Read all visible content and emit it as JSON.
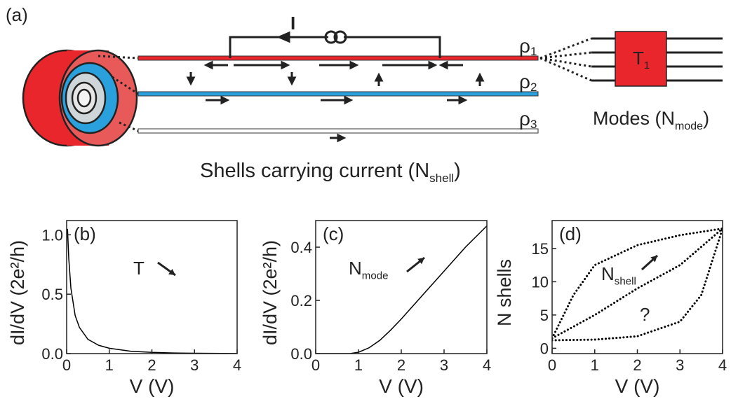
{
  "diagram": {
    "panel_label": "(a)",
    "current_label": "I",
    "shells": [
      {
        "symbol": "ρ",
        "sub": "1",
        "color": "#e8262b"
      },
      {
        "symbol": "ρ",
        "sub": "2",
        "color": "#2aa1dd"
      },
      {
        "symbol": "ρ",
        "sub": "3",
        "color": "#ffffff"
      }
    ],
    "box": {
      "symbol": "T",
      "sub": "1"
    },
    "modes": {
      "text": "Modes (N",
      "sub": "mode",
      "end": ")"
    },
    "caption": {
      "text": "Shells carrying current (N",
      "sub": "shell",
      "end": ")"
    }
  },
  "chart_data": [
    {
      "type": "line",
      "panel_label": "(b)",
      "xlabel": "V (V)",
      "ylabel": "dI/dV (2e²/h)",
      "xlim": [
        0,
        4
      ],
      "ylim": [
        0,
        1.12
      ],
      "xticks": [
        0,
        1,
        2,
        3,
        4
      ],
      "yticks": [
        {
          "value": 0,
          "label": "0.0"
        },
        {
          "value": 0.5,
          "label": "0.5"
        },
        {
          "value": 1,
          "label": "1.0"
        }
      ],
      "annotation": {
        "text": "T",
        "sub": ""
      },
      "series": [
        {
          "color": "#000000",
          "linestyle": "solid",
          "x": [
            0.02,
            0.05,
            0.1,
            0.2,
            0.3,
            0.5,
            0.75,
            1,
            1.5,
            2,
            2.5,
            3,
            4
          ],
          "values": [
            1.05,
            0.8,
            0.55,
            0.32,
            0.22,
            0.12,
            0.07,
            0.045,
            0.02,
            0.01,
            0.005,
            0.003,
            0.001
          ]
        }
      ]
    },
    {
      "type": "line",
      "panel_label": "(c)",
      "xlabel": "V (V)",
      "ylabel": "dI/dV (2e²/h)",
      "xlim": [
        0,
        4
      ],
      "ylim": [
        0,
        0.5
      ],
      "xticks": [
        0,
        1,
        2,
        3,
        4
      ],
      "yticks": [
        {
          "value": 0,
          "label": "0.0"
        },
        {
          "value": 0.2,
          "label": "0.2"
        },
        {
          "value": 0.4,
          "label": "0.4"
        }
      ],
      "annotation": {
        "text": "N",
        "sub": "mode"
      },
      "series": [
        {
          "color": "#000000",
          "linestyle": "solid",
          "x": [
            0,
            0.8,
            1,
            1.25,
            1.5,
            1.75,
            2,
            2.5,
            3,
            3.5,
            4
          ],
          "values": [
            0,
            0,
            0.005,
            0.022,
            0.05,
            0.088,
            0.13,
            0.22,
            0.31,
            0.4,
            0.48
          ]
        }
      ]
    },
    {
      "type": "line",
      "panel_label": "(d)",
      "xlabel": "V (V)",
      "ylabel": "N shells",
      "xlim": [
        0,
        4
      ],
      "ylim": [
        -0.8,
        19.2
      ],
      "xticks": [
        0,
        1,
        2,
        3,
        4
      ],
      "yticks": [
        0,
        5,
        10,
        15
      ],
      "annotation": {
        "text": "N",
        "sub": "shell"
      },
      "note": "?",
      "series": [
        {
          "color": "#000000",
          "linestyle": "dotted",
          "x": [
            0,
            0.5,
            1,
            2,
            3,
            4
          ],
          "values": [
            1.5,
            8,
            12.5,
            15.5,
            17,
            18
          ]
        },
        {
          "color": "#000000",
          "linestyle": "dotted",
          "x": [
            0,
            1,
            2,
            3,
            4
          ],
          "values": [
            1.5,
            5,
            9,
            12.5,
            18
          ]
        },
        {
          "color": "#000000",
          "linestyle": "dotted",
          "x": [
            0,
            1,
            2,
            3,
            3.5,
            4
          ],
          "values": [
            1.2,
            1.3,
            1.8,
            4,
            8,
            18
          ]
        }
      ]
    }
  ]
}
